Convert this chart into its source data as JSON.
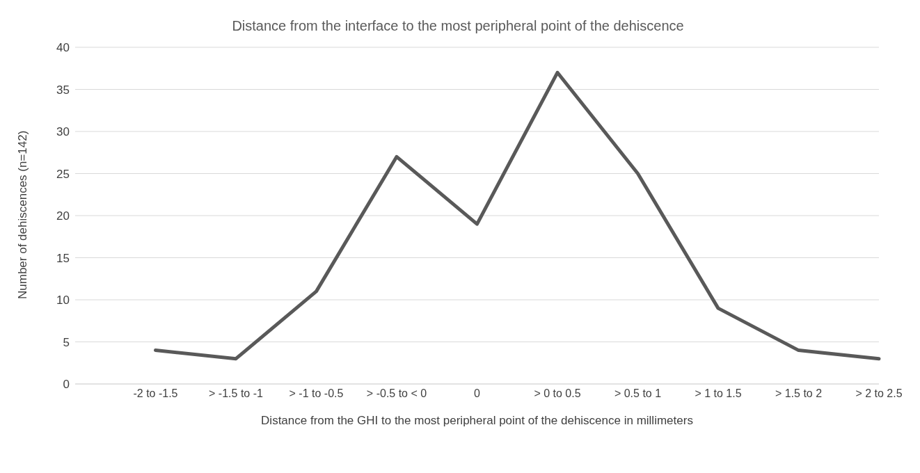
{
  "chart_data": {
    "type": "line",
    "title": "Distance from the interface to the most peripheral point of the dehiscence",
    "xlabel": "Distance from the GHI to the most peripheral point of the dehiscence in millimeters",
    "ylabel": "Number of dehiscences (n=142)",
    "categories": [
      null,
      "-2 to -1.5",
      "> -1.5 to -1",
      "> -1 to -0.5",
      "> -0.5 to < 0",
      "0",
      "> 0 to 0.5",
      "> 0.5 to 1",
      "> 1 to 1.5",
      "> 1.5 to 2",
      "> 2 to 2.5"
    ],
    "series": [
      {
        "color": "#595959",
        "values": [
          null,
          4,
          3,
          11,
          27,
          19,
          37,
          25,
          9,
          4,
          3
        ]
      }
    ],
    "ylim": [
      0,
      40
    ],
    "yticks": [
      0,
      5,
      10,
      15,
      20,
      25,
      30,
      35,
      40
    ],
    "grid": "y",
    "legend": false,
    "marker": "none",
    "line_style": "solid"
  }
}
